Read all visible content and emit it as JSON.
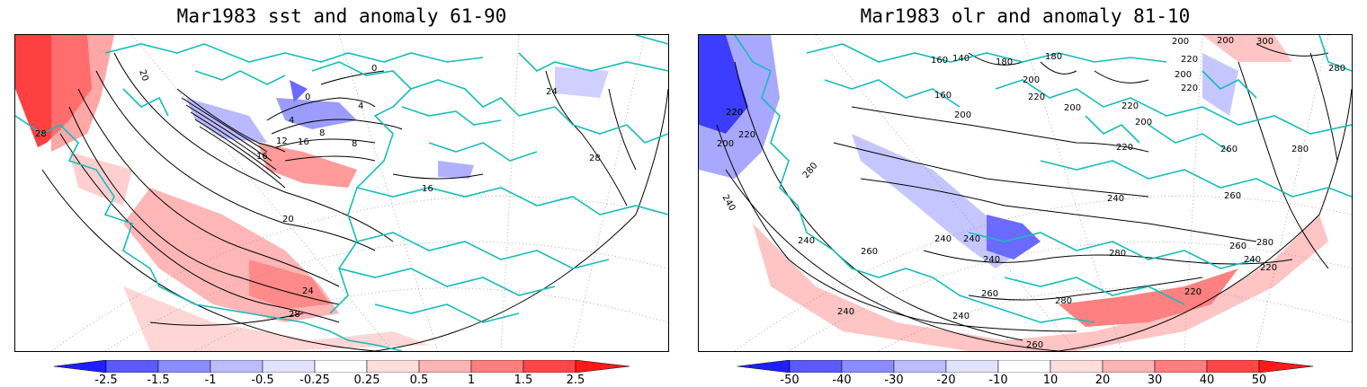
{
  "panels": [
    {
      "title": "Mar1983 sst and anomaly 61-90",
      "contour_labels": [
        "20",
        "0",
        "0",
        "4",
        "4",
        "8",
        "12",
        "16",
        "28",
        "8",
        "16",
        "24",
        "28",
        "16",
        "20",
        "24",
        "28"
      ],
      "colorbar": {
        "labels": [
          "-2.5",
          "-1.5",
          "-1",
          "-0.5",
          "-0.25",
          "0.25",
          "0.5",
          "1",
          "1.5",
          "2.5"
        ],
        "colors": [
          "#1f1fff",
          "#5a5aff",
          "#8c8cff",
          "#bcbcff",
          "#e2e2ff",
          "#ffffff",
          "#ffdede",
          "#ffb4b4",
          "#ff7e7e",
          "#ff4646",
          "#ff1a1a"
        ]
      }
    },
    {
      "title": "Mar1983 olr and anomaly 81-10",
      "contour_labels": [
        "160",
        "140",
        "180",
        "180",
        "200",
        "200",
        "300",
        "280",
        "160",
        "200",
        "220",
        "220",
        "200",
        "220",
        "200",
        "220",
        "220",
        "200",
        "200",
        "220",
        "260",
        "280",
        "200",
        "280",
        "240",
        "260",
        "220",
        "240",
        "240",
        "240",
        "240",
        "280",
        "260",
        "240",
        "280",
        "260",
        "280",
        "240",
        "220",
        "220",
        "260",
        "240",
        "240",
        "260"
      ],
      "colorbar": {
        "labels": [
          "-50",
          "-40",
          "-30",
          "-20",
          "-10",
          "10",
          "20",
          "30",
          "40",
          "50"
        ],
        "colors": [
          "#1f1fff",
          "#5a5aff",
          "#8c8cff",
          "#bcbcff",
          "#e2e2ff",
          "#ffffff",
          "#ffdede",
          "#ffb4b4",
          "#ff7e7e",
          "#ff4646",
          "#ff1a1a"
        ]
      }
    }
  ],
  "colors": {
    "coastline": "#18bcbc",
    "contour": "#000000",
    "frame": "#000000"
  }
}
